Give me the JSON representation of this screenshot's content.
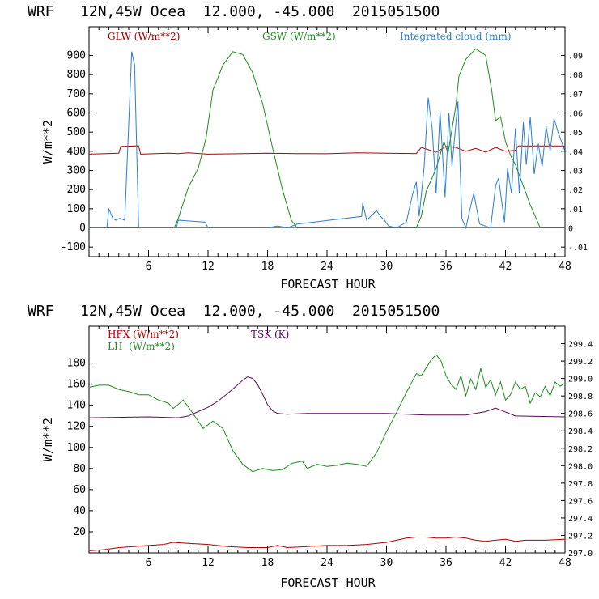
{
  "colors": {
    "red": "#b00000",
    "green": "#1e8c1e",
    "blue": "#2a7fd4",
    "purple": "#5a0a5a",
    "axis": "#000000"
  },
  "chart_data": [
    {
      "type": "line",
      "title": "WRF   12N,45W Ocea  12.000, -45.000  2015051500",
      "xlabel": "FORECAST HOUR",
      "ylabel": "W/m**2",
      "xlim": [
        0,
        48
      ],
      "xticks": [
        "6",
        "12",
        "18",
        "24",
        "30",
        "36",
        "42",
        "48"
      ],
      "ylim": [
        -150,
        1050
      ],
      "yticks": [
        "-100",
        "0",
        "100",
        "200",
        "300",
        "400",
        "500",
        "600",
        "700",
        "800",
        "900"
      ],
      "y2lim": [
        -0.015,
        0.105
      ],
      "y2ticks": [
        "-.01",
        "0",
        ".01",
        ".02",
        ".03",
        ".04",
        ".05",
        ".06",
        ".07",
        ".08",
        ".09"
      ],
      "legend": [
        "GLW (W/m**2)",
        "GSW (W/m**2)",
        "Integrated cloud (mm)"
      ],
      "series": [
        {
          "name": "GLW (W/m**2)",
          "axis": "left",
          "color": "red",
          "x": [
            0,
            3,
            3.2,
            5,
            5.2,
            8,
            9,
            10,
            12,
            15,
            18,
            21,
            24,
            27,
            30,
            33,
            33.5,
            35,
            36,
            37,
            38,
            39,
            40,
            41,
            42,
            43,
            43.3,
            46,
            48
          ],
          "y": [
            385,
            390,
            425,
            428,
            385,
            390,
            388,
            392,
            385,
            387,
            390,
            388,
            387,
            392,
            390,
            388,
            420,
            395,
            425,
            420,
            400,
            415,
            395,
            420,
            400,
            405,
            428,
            428,
            428
          ]
        },
        {
          "name": "GSW (W/m**2)",
          "axis": "left",
          "color": "green",
          "x": [
            0,
            8.6,
            9,
            10,
            11,
            11.8,
            12,
            12.5,
            13.5,
            14.5,
            15.5,
            16.5,
            17.5,
            18.5,
            19.5,
            20.4,
            21,
            33,
            33.5,
            34,
            35,
            35.8,
            36.2,
            37,
            37.3,
            38,
            39,
            40,
            40.6,
            41,
            41.5,
            42,
            42.5,
            43,
            44.5,
            45.5,
            48
          ],
          "y": [
            0,
            0,
            50,
            210,
            310,
            470,
            540,
            720,
            850,
            920,
            905,
            810,
            650,
            420,
            200,
            40,
            0,
            0,
            60,
            190,
            310,
            450,
            390,
            640,
            790,
            880,
            935,
            900,
            720,
            560,
            580,
            450,
            380,
            330,
            120,
            0,
            0
          ]
        },
        {
          "name": "Integrated cloud (mm)",
          "axis": "right",
          "color": "blue",
          "x": [
            0,
            1.8,
            2,
            2.4,
            2.7,
            3.1,
            3.6,
            4.3,
            4.6,
            5,
            5.3,
            8.8,
            9,
            11.7,
            12,
            18,
            19,
            20,
            21,
            27.5,
            27.6,
            28,
            29,
            29.4,
            29.8,
            30.2,
            31,
            32,
            32.6,
            33,
            33.3,
            33.8,
            34.2,
            34.6,
            35,
            35.4,
            35.9,
            36.3,
            36.6,
            37.2,
            37.6,
            38,
            38.6,
            38.8,
            39.4,
            40.5,
            41,
            41.3,
            41.9,
            42.2,
            42.6,
            43,
            43.4,
            43.8,
            44.1,
            44.5,
            44.9,
            45.3,
            45.7,
            46.1,
            46.5,
            46.9,
            47.3,
            48
          ],
          "y": [
            0,
            0,
            0.01,
            0.005,
            0.004,
            0.005,
            0.004,
            0.092,
            0.085,
            0,
            0,
            0,
            0.004,
            0.003,
            0,
            0,
            0.001,
            0,
            0.002,
            0.006,
            0.013,
            0.004,
            0.009,
            0.006,
            0.004,
            0.001,
            0,
            0.003,
            0.017,
            0.024,
            0.006,
            0.032,
            0.068,
            0.052,
            0.018,
            0.061,
            0.016,
            0.06,
            0.032,
            0.066,
            0.005,
            0,
            0.014,
            0.018,
            0.002,
            0,
            0.022,
            0.026,
            0.003,
            0.031,
            0.018,
            0.052,
            0.018,
            0.055,
            0.033,
            0.058,
            0.028,
            0.044,
            0.032,
            0.053,
            0.04,
            0.057,
            0.05,
            0.04
          ]
        }
      ]
    },
    {
      "type": "line",
      "title": "WRF   12N,45W Ocea  12.000, -45.000  2015051500",
      "xlabel": "FORECAST HOUR",
      "ylabel": "W/m**2",
      "xlim": [
        0,
        48
      ],
      "xticks": [
        "6",
        "12",
        "18",
        "24",
        "30",
        "36",
        "42",
        "48"
      ],
      "ylim": [
        0,
        215
      ],
      "yticks": [
        "20",
        "40",
        "60",
        "80",
        "100",
        "120",
        "140",
        "160",
        "180"
      ],
      "y2lim": [
        297.0,
        299.6
      ],
      "y2ticks": [
        "297.0",
        "297.2",
        "297.4",
        "297.6",
        "297.8",
        "298.0",
        "298.2",
        "298.4",
        "298.6",
        "298.8",
        "299.0",
        "299.2",
        "299.4"
      ],
      "legend": [
        "HFX (W/m**2)",
        "LH  (W/m**2)",
        "TSK (K)"
      ],
      "series": [
        {
          "name": "HFX (W/m**2)",
          "axis": "left",
          "color": "red",
          "x": [
            0,
            1.5,
            3,
            4.5,
            6,
            7.5,
            8.5,
            10,
            12,
            14,
            16,
            18,
            19,
            20,
            22,
            24,
            26,
            28,
            30,
            31,
            32,
            33,
            34,
            35,
            36,
            37,
            38,
            39,
            40,
            41,
            42,
            43,
            44,
            46,
            48
          ],
          "y": [
            2,
            3,
            5,
            6,
            7,
            8,
            10,
            9,
            8,
            6,
            5,
            5,
            7,
            5,
            6,
            7,
            7,
            8,
            10,
            12,
            14,
            15,
            15,
            14,
            14,
            15,
            14,
            12,
            11,
            12,
            13,
            11,
            12,
            12,
            13
          ]
        },
        {
          "name": "LH  (W/m**2)",
          "axis": "left",
          "color": "green",
          "x": [
            0,
            1,
            2,
            3,
            4,
            5,
            6,
            7,
            8,
            8.5,
            9.5,
            10.5,
            11.5,
            12.5,
            13.5,
            14.5,
            15.5,
            16.5,
            17.5,
            18.5,
            19.5,
            20.5,
            21.5,
            22,
            23,
            24,
            25,
            26,
            27,
            28,
            29,
            30,
            31,
            32,
            33,
            33.5,
            34.5,
            35,
            35.5,
            36,
            36.5,
            37,
            37.5,
            38,
            38.5,
            39,
            39.5,
            40,
            40.5,
            41,
            41.5,
            42,
            42.5,
            43,
            43.5,
            44,
            44.5,
            45,
            45.5,
            46,
            46.5,
            47,
            47.5,
            48
          ],
          "y": [
            157,
            159,
            159,
            155,
            153,
            150,
            150,
            145,
            142,
            137,
            145,
            132,
            118,
            125,
            118,
            97,
            84,
            77,
            80,
            78,
            79,
            85,
            87,
            80,
            84,
            82,
            83,
            85,
            84,
            82,
            95,
            115,
            133,
            152,
            170,
            168,
            183,
            188,
            182,
            168,
            160,
            155,
            168,
            149,
            165,
            155,
            175,
            157,
            164,
            150,
            162,
            145,
            150,
            162,
            155,
            158,
            142,
            152,
            148,
            158,
            149,
            162,
            158,
            161
          ]
        },
        {
          "name": "TSK (K)",
          "axis": "right",
          "color": "purple",
          "x": [
            0,
            6,
            9,
            10,
            11,
            12,
            13,
            14,
            15,
            15.5,
            16,
            16.5,
            17,
            17.5,
            18,
            18.5,
            19,
            20,
            22,
            30,
            34,
            38,
            40,
            41,
            43,
            48
          ],
          "y": [
            298.55,
            298.56,
            298.55,
            298.57,
            298.62,
            298.67,
            298.74,
            298.83,
            298.93,
            298.98,
            299.02,
            299.0,
            298.93,
            298.82,
            298.7,
            298.63,
            298.6,
            298.59,
            298.6,
            298.6,
            298.58,
            298.58,
            298.62,
            298.66,
            298.57,
            298.56
          ]
        }
      ]
    }
  ]
}
